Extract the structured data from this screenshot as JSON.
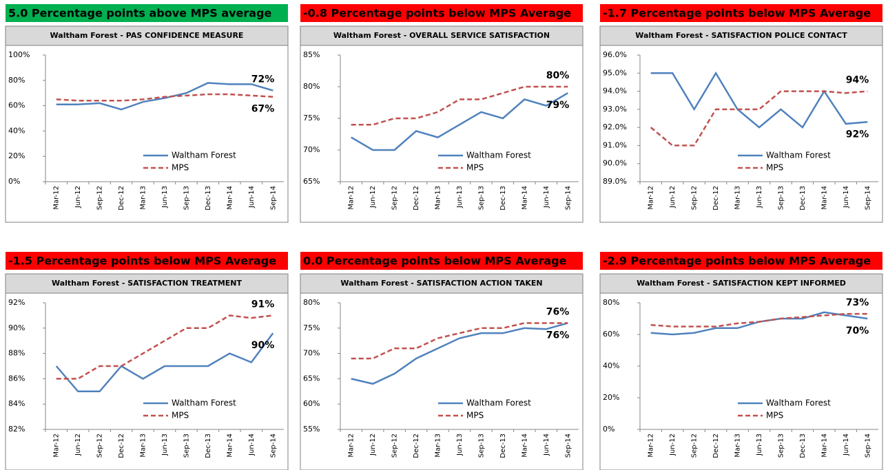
{
  "chart_data": [
    {
      "type": "line",
      "banner": "5.0 Percentage points above MPS average",
      "banner_color": "#00b050",
      "title": "Waltham Forest - PAS CONFIDENCE MEASURE",
      "categories": [
        "Mar-12",
        "Jun-12",
        "Sep-12",
        "Dec-12",
        "Mar-13",
        "Jun-13",
        "Sep-13",
        "Dec-13",
        "Mar-14",
        "Jun-14",
        "Sep-14"
      ],
      "series": [
        {
          "name": "Waltham Forest",
          "color": "#4f81bd",
          "values": [
            61,
            61,
            62,
            57,
            63,
            66,
            70,
            78,
            77,
            77,
            72
          ],
          "value_labels": [
            null,
            null,
            null,
            null,
            null,
            null,
            null,
            null,
            null,
            null,
            "72%"
          ]
        },
        {
          "name": "MPS",
          "color": "#c0504d",
          "dashed": true,
          "values": [
            65,
            64,
            64,
            64,
            65,
            67,
            68,
            69,
            69,
            68,
            67
          ],
          "value_labels": [
            null,
            null,
            null,
            null,
            null,
            null,
            null,
            null,
            null,
            null,
            "67%"
          ]
        }
      ],
      "ylim": [
        0,
        100
      ],
      "yticks": [
        {
          "value": 0,
          "label": "0%"
        },
        {
          "value": 20,
          "label": "20%"
        },
        {
          "value": 40,
          "label": "40%"
        },
        {
          "value": 60,
          "label": "60%"
        },
        {
          "value": 80,
          "label": "80%"
        },
        {
          "value": 100,
          "label": "100%"
        }
      ],
      "legend": "lower right"
    },
    {
      "type": "line",
      "banner": "-0.8 Percentage points below MPS Average",
      "banner_color": "#ff0000",
      "title": "Waltham Forest - OVERALL SERVICE SATISFACTION",
      "categories": [
        "Mar-12",
        "Jun-12",
        "Sep-12",
        "Dec-12",
        "Mar-13",
        "Jun-13",
        "Sep-13",
        "Dec-13",
        "Mar-14",
        "Jun-14",
        "Sep-14"
      ],
      "series": [
        {
          "name": "Waltham Forest",
          "color": "#4f81bd",
          "values": [
            72,
            70,
            70,
            73,
            72,
            74,
            76,
            75,
            78,
            77,
            79
          ],
          "value_labels": [
            null,
            null,
            null,
            null,
            null,
            null,
            null,
            null,
            null,
            null,
            "79%"
          ]
        },
        {
          "name": "MPS",
          "color": "#c0504d",
          "dashed": true,
          "values": [
            74,
            74,
            75,
            75,
            76,
            78,
            78,
            79,
            80,
            80,
            80
          ],
          "value_labels": [
            null,
            null,
            null,
            null,
            null,
            null,
            null,
            null,
            null,
            null,
            "80%"
          ]
        }
      ],
      "ylim": [
        65,
        85
      ],
      "yticks": [
        {
          "value": 65,
          "label": "65%"
        },
        {
          "value": 70,
          "label": "70%"
        },
        {
          "value": 75,
          "label": "75%"
        },
        {
          "value": 80,
          "label": "80%"
        },
        {
          "value": 85,
          "label": "85%"
        }
      ],
      "legend": "lower right"
    },
    {
      "type": "line",
      "banner": "-1.7 Percentage points below MPS Average",
      "banner_color": "#ff0000",
      "title": "Waltham Forest - SATISFACTION POLICE CONTACT",
      "categories": [
        "Mar-12",
        "Jun-12",
        "Sep-12",
        "Dec-12",
        "Mar-13",
        "Jun-13",
        "Sep-13",
        "Dec-13",
        "Mar-14",
        "Jun-14",
        "Sep-14"
      ],
      "series": [
        {
          "name": "Waltham Forest",
          "color": "#4f81bd",
          "values": [
            95,
            95,
            93,
            95,
            93,
            92,
            93,
            92,
            94,
            92.2,
            92.3
          ],
          "value_labels": [
            null,
            null,
            null,
            null,
            null,
            null,
            null,
            null,
            null,
            null,
            "92%"
          ]
        },
        {
          "name": "MPS",
          "color": "#c0504d",
          "dashed": true,
          "values": [
            92,
            91,
            91,
            93,
            93,
            93,
            94,
            94,
            94,
            93.9,
            94
          ],
          "value_labels": [
            null,
            null,
            null,
            null,
            null,
            null,
            null,
            null,
            null,
            null,
            "94%"
          ]
        }
      ],
      "ylim": [
        89,
        96
      ],
      "yticks": [
        {
          "value": 89,
          "label": "89.0%"
        },
        {
          "value": 90,
          "label": "90.0%"
        },
        {
          "value": 91,
          "label": "91.0%"
        },
        {
          "value": 92,
          "label": "92.0%"
        },
        {
          "value": 93,
          "label": "93.0%"
        },
        {
          "value": 94,
          "label": "94.0%"
        },
        {
          "value": 95,
          "label": "95.0%"
        },
        {
          "value": 96,
          "label": "96.0%"
        }
      ],
      "legend": "lower right"
    },
    {
      "type": "line",
      "banner": "-1.5 Percentage points below MPS Average",
      "banner_color": "#ff0000",
      "title": "Waltham Forest - SATISFACTION TREATMENT",
      "categories": [
        "Mar-12",
        "Jun-12",
        "Sep-12",
        "Dec-12",
        "Mar-13",
        "Jun-13",
        "Sep-13",
        "Dec-13",
        "Mar-14",
        "Jun-14",
        "Sep-14"
      ],
      "series": [
        {
          "name": "Waltham Forest",
          "color": "#4f81bd",
          "values": [
            87,
            85,
            85,
            87,
            86,
            87,
            87,
            87,
            88,
            87.3,
            89.6
          ],
          "value_labels": [
            null,
            null,
            null,
            null,
            null,
            null,
            null,
            null,
            null,
            null,
            "90%"
          ]
        },
        {
          "name": "MPS",
          "color": "#c0504d",
          "dashed": true,
          "values": [
            86,
            86,
            87,
            87,
            88,
            89,
            90,
            90,
            91,
            90.8,
            91
          ],
          "value_labels": [
            null,
            null,
            null,
            null,
            null,
            null,
            null,
            null,
            null,
            null,
            "91%"
          ]
        }
      ],
      "ylim": [
        82,
        92
      ],
      "yticks": [
        {
          "value": 82,
          "label": "82%"
        },
        {
          "value": 84,
          "label": "84%"
        },
        {
          "value": 86,
          "label": "86%"
        },
        {
          "value": 88,
          "label": "88%"
        },
        {
          "value": 90,
          "label": "90%"
        },
        {
          "value": 92,
          "label": "92%"
        }
      ],
      "legend": "lower right"
    },
    {
      "type": "line",
      "banner": "0.0 Percentage points below MPS Average",
      "banner_color": "#ff0000",
      "title": "Waltham Forest - SATISFACTION ACTION TAKEN",
      "categories": [
        "Mar-12",
        "Jun-12",
        "Sep-12",
        "Dec-12",
        "Mar-13",
        "Jun-13",
        "Sep-13",
        "Dec-13",
        "Mar-14",
        "Jun-14",
        "Sep-14"
      ],
      "series": [
        {
          "name": "Waltham Forest",
          "color": "#4f81bd",
          "values": [
            65,
            64,
            66,
            69,
            71,
            73,
            74,
            74,
            75,
            74.8,
            76
          ],
          "value_labels": [
            null,
            null,
            null,
            null,
            null,
            null,
            null,
            null,
            null,
            null,
            "76%"
          ]
        },
        {
          "name": "MPS",
          "color": "#c0504d",
          "dashed": true,
          "values": [
            69,
            69,
            71,
            71,
            73,
            74,
            75,
            75,
            76,
            76,
            76
          ],
          "value_labels": [
            null,
            null,
            null,
            null,
            null,
            null,
            null,
            null,
            null,
            null,
            "76%"
          ]
        }
      ],
      "ylim": [
        55,
        80
      ],
      "yticks": [
        {
          "value": 55,
          "label": "55%"
        },
        {
          "value": 60,
          "label": "60%"
        },
        {
          "value": 65,
          "label": "65%"
        },
        {
          "value": 70,
          "label": "70%"
        },
        {
          "value": 75,
          "label": "75%"
        },
        {
          "value": 80,
          "label": "80%"
        }
      ],
      "legend": "lower right"
    },
    {
      "type": "line",
      "banner": "-2.9 Percentage points below MPS Average",
      "banner_color": "#ff0000",
      "title": "Waltham Forest - SATISFACTION KEPT INFORMED",
      "categories": [
        "Mar-12",
        "Jun-12",
        "Sep-12",
        "Dec-12",
        "Mar-13",
        "Jun-13",
        "Sep-13",
        "Dec-13",
        "Mar-14",
        "Jun-14",
        "Sep-14"
      ],
      "series": [
        {
          "name": "Waltham Forest",
          "color": "#4f81bd",
          "values": [
            61,
            60,
            61,
            64,
            64,
            68,
            70,
            70,
            74,
            72,
            70
          ],
          "value_labels": [
            null,
            null,
            null,
            null,
            null,
            null,
            null,
            null,
            null,
            null,
            "70%"
          ]
        },
        {
          "name": "MPS",
          "color": "#c0504d",
          "dashed": true,
          "values": [
            66,
            65,
            65,
            65,
            67,
            68,
            70,
            71,
            72,
            73,
            73
          ],
          "value_labels": [
            null,
            null,
            null,
            null,
            null,
            null,
            null,
            null,
            null,
            null,
            "73%"
          ]
        }
      ],
      "ylim": [
        0,
        80
      ],
      "yticks": [
        {
          "value": 0,
          "label": "0%"
        },
        {
          "value": 20,
          "label": "20%"
        },
        {
          "value": 40,
          "label": "40%"
        },
        {
          "value": 60,
          "label": "60%"
        },
        {
          "value": 80,
          "label": "80%"
        }
      ],
      "legend": "lower right"
    }
  ]
}
